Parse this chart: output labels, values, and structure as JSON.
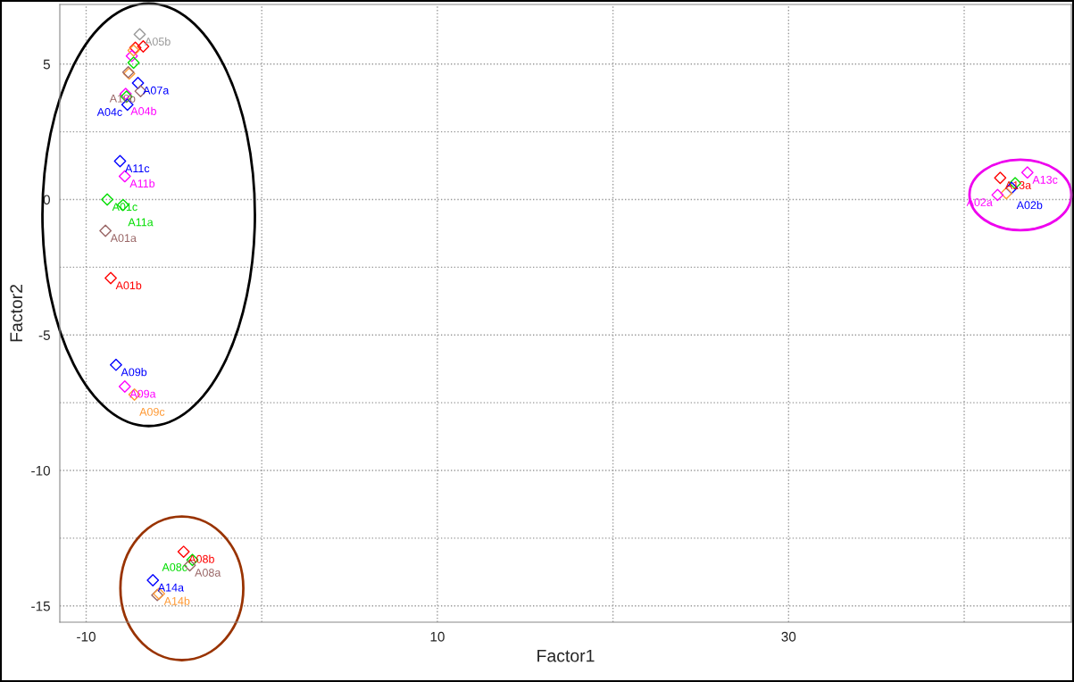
{
  "chart_data": {
    "type": "scatter",
    "xlabel": "Factor1",
    "ylabel": "Factor2",
    "marker": "diamond",
    "grid": true,
    "xlim": [
      -11.5,
      46.1
    ],
    "ylim": [
      -15.6,
      7.2
    ],
    "xticks": [
      -10,
      {
        "value": 0,
        "label": null
      },
      10,
      {
        "value": 20,
        "label": null
      },
      30,
      {
        "value": 40,
        "label": null
      }
    ],
    "yticks": [
      5,
      {
        "value": 2.5,
        "label": null
      },
      0,
      {
        "value": -2.5,
        "label": null
      },
      -5,
      {
        "value": -7.5,
        "label": null
      },
      -10,
      {
        "value": -12.5,
        "label": null
      },
      -15
    ],
    "series": [
      {
        "x": [
          -8.07,
          -7.8,
          -8.8,
          -7.9,
          -8.9,
          -8.6,
          -8.3,
          -7.8,
          -7.25,
          -6.95,
          -7.2,
          -6.75,
          -7.4,
          -7.3,
          -7.3,
          -7.55,
          -7.6,
          -7.05,
          -6.9,
          -7.75,
          -7.7,
          -7.65,
          -4.45,
          -3.95,
          -4.1,
          -6.2,
          -5.95,
          -5.85,
          43.6,
          42.05,
          42.9,
          42.7,
          42.4,
          41.9
        ],
        "values": [
          1.42,
          0.86,
          0.0,
          -0.2,
          -1.15,
          -2.9,
          -6.1,
          -6.9,
          -7.2,
          6.1,
          5.6,
          5.65,
          5.3,
          5.5,
          5.05,
          4.65,
          4.7,
          4.3,
          4.0,
          3.9,
          3.8,
          3.5,
          -13.0,
          -13.3,
          -13.5,
          -14.05,
          -14.6,
          -14.55,
          1.0,
          0.8,
          0.6,
          0.43,
          0.23,
          0.17
        ],
        "colors": [
          "#0000ff",
          "#ff00ff",
          "#00dd00",
          "#00dd00",
          "#996666",
          "#ff0000",
          "#0000ff",
          "#ff00ff",
          "#ff9933",
          "#999999",
          "#ff0000",
          "#ff0000",
          "#ff00ff",
          "#ff9933",
          "#00dd00",
          "#ff9933",
          "#996666",
          "#0000ff",
          "#996666",
          "#ff00ff",
          "#00dd00",
          "#0000ff",
          "#ff0000",
          "#00dd00",
          "#996666",
          "#0000ff",
          "#996666",
          "#ff9933",
          "#ff00ff",
          "#ff0000",
          "#00dd00",
          "#0000ff",
          "#ff9933",
          "#ff00ff"
        ],
        "value_labels": [
          "A11c",
          "A11b",
          "A01c",
          "A11a",
          "A01a",
          "A01b",
          "A09b",
          "A09a",
          "A09c",
          "A05b",
          null,
          null,
          null,
          null,
          null,
          null,
          null,
          "A07a",
          "A10b",
          "A04b",
          null,
          "A04c",
          "A08b",
          "A08c",
          "A08a",
          "A14a",
          null,
          "A14b",
          "A13c",
          "A13a",
          null,
          "A02b",
          null,
          "A02a"
        ]
      }
    ]
  }
}
